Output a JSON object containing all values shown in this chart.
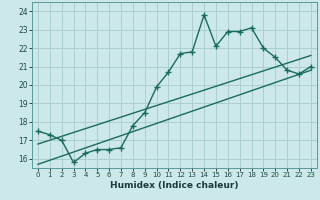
{
  "xlabel": "Humidex (Indice chaleur)",
  "ylabel": "",
  "xlim": [
    -0.5,
    23.5
  ],
  "ylim": [
    15.5,
    24.5
  ],
  "yticks": [
    16,
    17,
    18,
    19,
    20,
    21,
    22,
    23,
    24
  ],
  "xticks": [
    0,
    1,
    2,
    3,
    4,
    5,
    6,
    7,
    8,
    9,
    10,
    11,
    12,
    13,
    14,
    15,
    16,
    17,
    18,
    19,
    20,
    21,
    22,
    23
  ],
  "bg_color": "#cce8e8",
  "grid_color": "#aacfcf",
  "line_color": "#1a6b5a",
  "line1_x": [
    0,
    1,
    2,
    3,
    4,
    5,
    6,
    7,
    8,
    9,
    10,
    11,
    12,
    13,
    14,
    15,
    16,
    17,
    18,
    19,
    20,
    21,
    22,
    23
  ],
  "line1_y": [
    17.5,
    17.3,
    17.0,
    15.8,
    16.3,
    16.5,
    16.5,
    16.6,
    17.8,
    18.5,
    19.9,
    20.7,
    21.7,
    21.8,
    23.8,
    22.1,
    22.9,
    22.9,
    23.1,
    22.0,
    21.5,
    20.8,
    20.6,
    21.0
  ],
  "line2_x": [
    0,
    23
  ],
  "line2_y": [
    15.7,
    20.8
  ],
  "line3_x": [
    0,
    23
  ],
  "line3_y": [
    16.8,
    21.6
  ],
  "marker": "+",
  "markersize": 4,
  "linewidth": 1.0
}
